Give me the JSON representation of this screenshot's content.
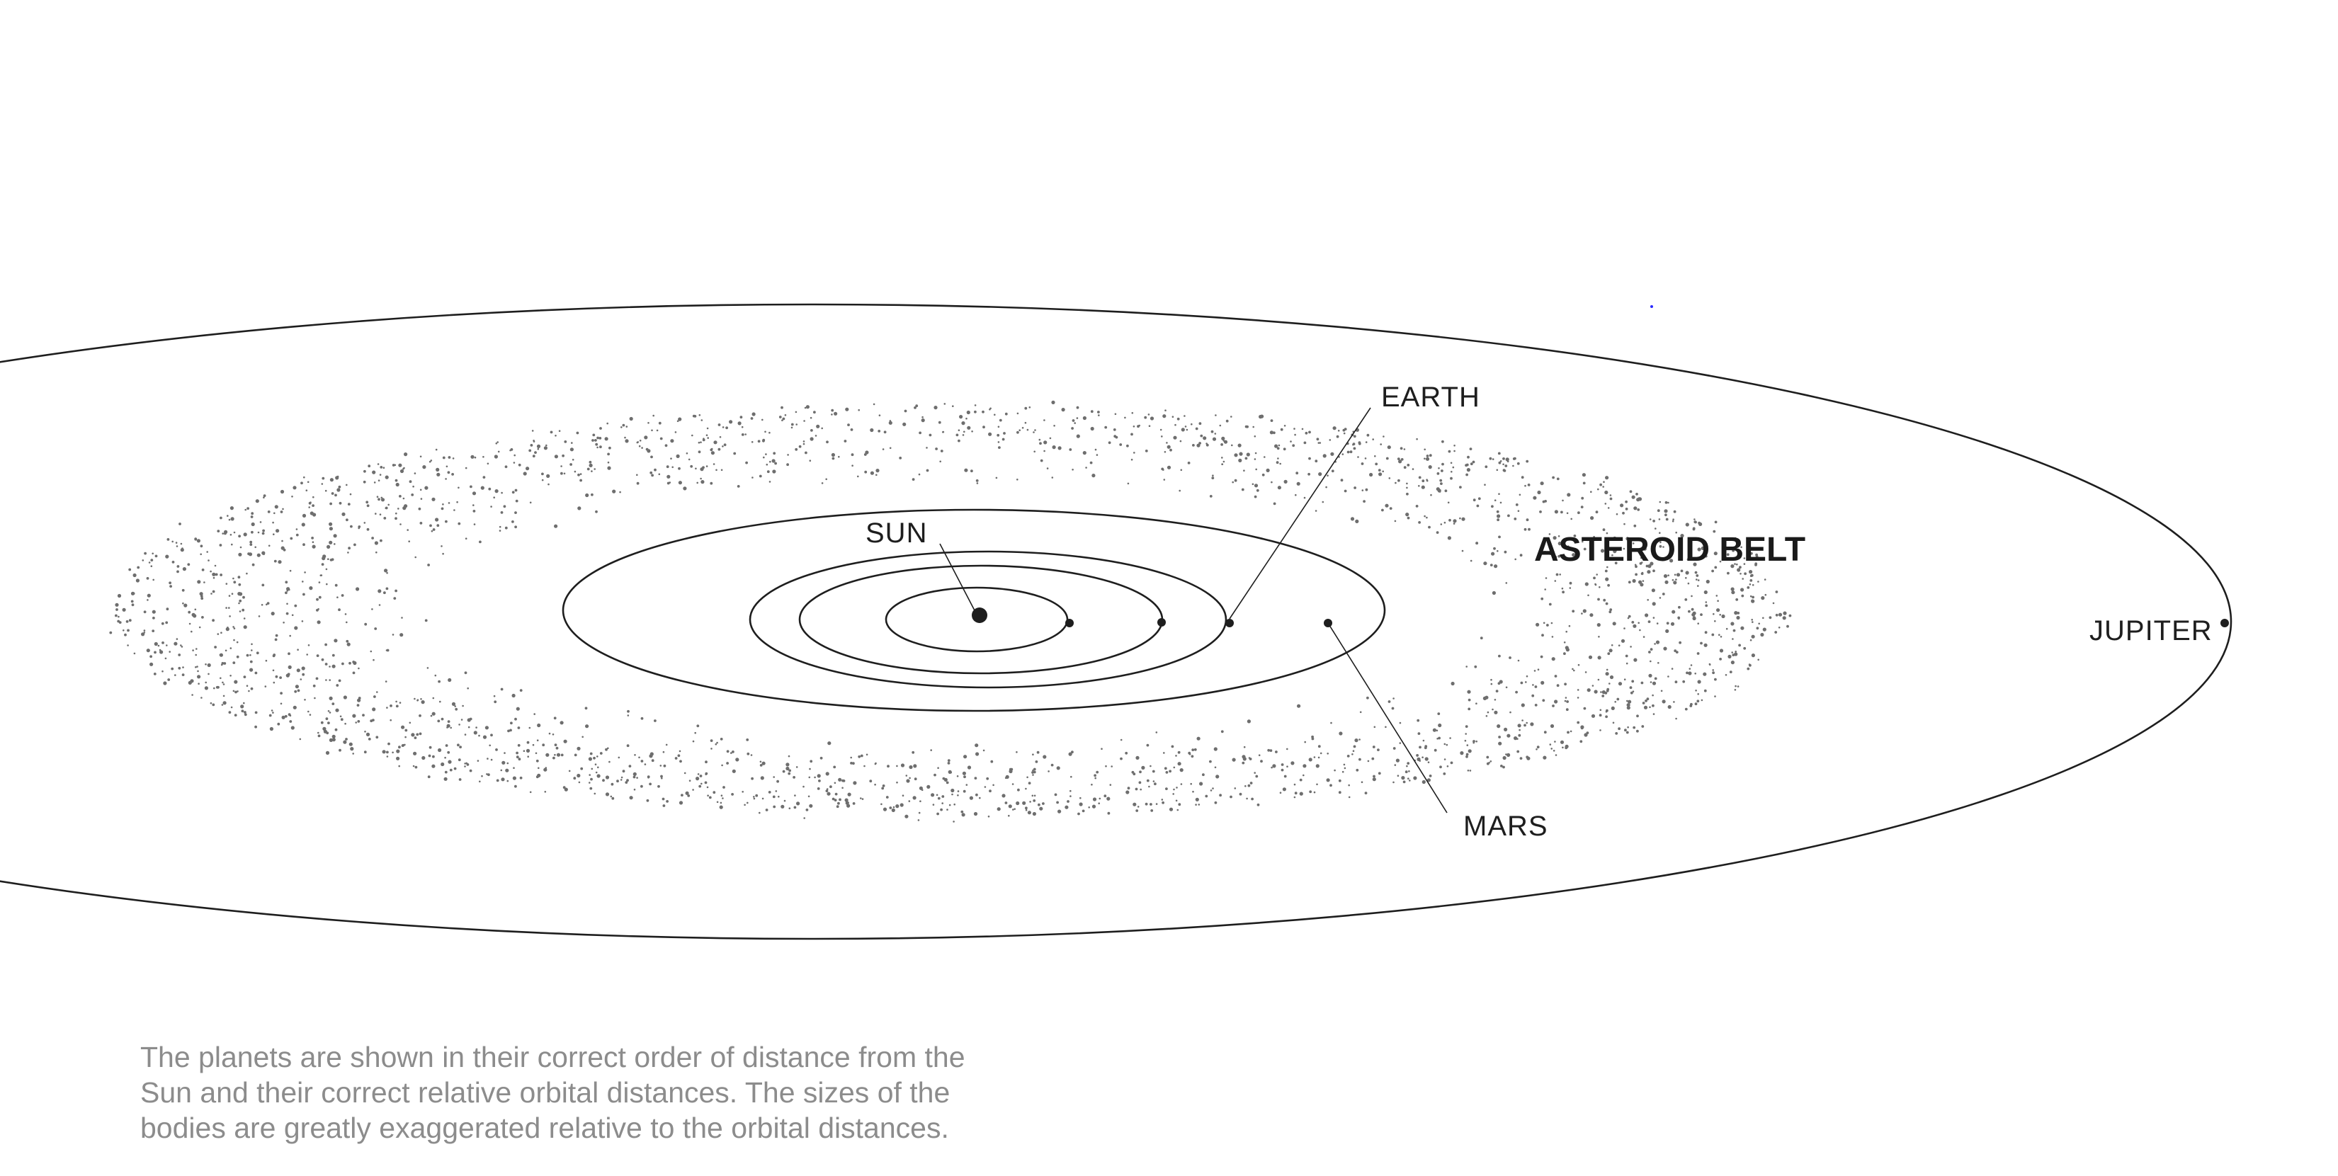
{
  "labels": {
    "sun": "SUN",
    "earth": "EARTH",
    "mars": "MARS",
    "jupiter": "JUPITER",
    "asteroid_belt": "ASTEROID BELT"
  },
  "caption": {
    "line1": "The planets are shown in their correct order of distance from the",
    "line2": "Sun and their correct relative orbital distances. The sizes of the",
    "line3": "bodies are greatly exaggerated relative to the orbital distances."
  },
  "colors": {
    "ink": "#1e1e1e",
    "asteroid": "#6e6e6e",
    "caption": "#8c8c8c",
    "background": "#ffffff"
  }
}
